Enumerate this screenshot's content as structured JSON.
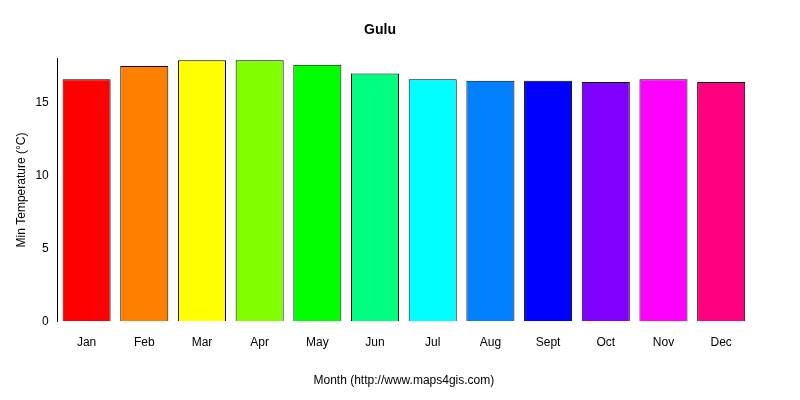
{
  "chart_data": {
    "type": "bar",
    "title": "Gulu",
    "x_label": "Month (http://www.maps4gis.com)",
    "y_label": "Min Temperature (°C)",
    "categories": [
      "Jan",
      "Feb",
      "Mar",
      "Apr",
      "May",
      "Jun",
      "Jul",
      "Aug",
      "Sept",
      "Oct",
      "Nov",
      "Dec"
    ],
    "values": [
      16.6,
      17.5,
      17.9,
      17.9,
      17.6,
      17.0,
      16.6,
      16.5,
      16.5,
      16.4,
      16.6,
      16.4
    ],
    "colors": [
      "#FF0000",
      "#FF8000",
      "#FFFF00",
      "#80FF00",
      "#00FF00",
      "#00FF80",
      "#00FFFF",
      "#0080FF",
      "#0000FF",
      "#8000FF",
      "#FF00FF",
      "#FF0080"
    ],
    "ylim": [
      0,
      18
    ],
    "yticks": [
      0,
      5,
      10,
      15
    ],
    "grid": false
  }
}
